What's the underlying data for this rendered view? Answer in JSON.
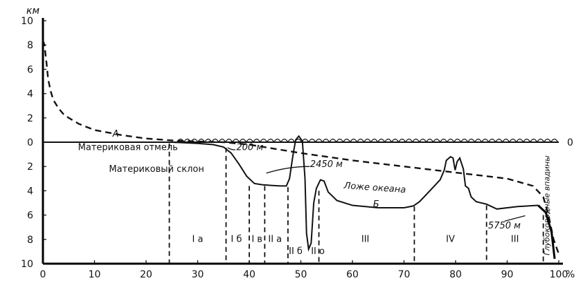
{
  "chart_data": {
    "type": "line",
    "title": "",
    "xlabel": "%",
    "ylabel": "км",
    "xlim": [
      0,
      100
    ],
    "ylim": [
      10,
      -10
    ],
    "x_ticks": [
      0,
      10,
      20,
      30,
      40,
      50,
      60,
      70,
      80,
      90,
      100
    ],
    "x_tick_labels": [
      "0",
      "10",
      "20",
      "30",
      "40",
      "50",
      "60",
      "70",
      "80",
      "90",
      "100"
    ],
    "y_tick_labels_upper": [
      "10",
      "8",
      "6",
      "4",
      "2",
      "0"
    ],
    "y_tick_labels_lower": [
      "2",
      "4",
      "6",
      "8",
      "10"
    ],
    "zero_label_right": "0",
    "series": [
      {
        "name": "А",
        "style": "dashed",
        "x": [
          0,
          0.3,
          0.7,
          1,
          1.5,
          2,
          3,
          4,
          5,
          7,
          10,
          15,
          20,
          25,
          30,
          35,
          40,
          50,
          60,
          70,
          80,
          90,
          95,
          97,
          98,
          99,
          100
        ],
        "y": [
          -8.4,
          -8.0,
          -6.5,
          -5.2,
          -4.2,
          -3.5,
          -2.8,
          -2.3,
          -2.0,
          -1.5,
          -1.0,
          -0.6,
          -0.3,
          -0.15,
          -0.05,
          0,
          0.2,
          0.9,
          1.5,
          2.0,
          2.5,
          3.0,
          3.6,
          4.5,
          6.0,
          8.0,
          9.2
        ]
      },
      {
        "name": "Б",
        "style": "solid",
        "x": [
          0,
          25,
          30,
          33,
          35,
          36.5,
          38,
          39.5,
          41,
          42.5,
          44,
          46,
          47.2,
          47.8,
          48.5,
          49,
          49.6,
          50.3,
          50.8,
          51.1,
          51.5,
          52,
          52.5,
          53,
          53.8,
          54.5,
          55.3,
          57,
          60,
          65,
          70,
          71.8,
          73,
          75,
          77,
          77.8,
          78.2,
          79,
          79.5,
          79.9,
          80.3,
          80.8,
          81.5,
          81.9,
          82.5,
          83,
          84,
          86,
          88,
          92,
          96
        ],
        "y": [
          0,
          0,
          0.1,
          0.2,
          0.4,
          0.9,
          1.8,
          2.8,
          3.4,
          3.5,
          3.55,
          3.6,
          3.6,
          3.0,
          1.0,
          -0.2,
          -0.5,
          -0.1,
          3.0,
          7.5,
          8.8,
          8.3,
          5.0,
          3.8,
          3.1,
          3.2,
          4.1,
          4.8,
          5.2,
          5.4,
          5.4,
          5.25,
          4.9,
          4.0,
          3.1,
          2.3,
          1.5,
          1.2,
          1.3,
          2.3,
          1.6,
          1.3,
          2.2,
          3.6,
          3.8,
          4.5,
          4.9,
          5.1,
          5.5,
          5.3,
          5.2
        ]
      }
    ],
    "zone_boundaries_x": [
      24.5,
      35.5,
      40,
      43,
      47.5,
      53.5,
      72,
      86,
      97
    ],
    "zone_labels": [
      {
        "text": "I а",
        "x": 30,
        "y": 8.2
      },
      {
        "text": "I б",
        "x": 37.5,
        "y": 8.2
      },
      {
        "text": "I в",
        "x": 41.5,
        "y": 8.2
      },
      {
        "text": "II а",
        "x": 45,
        "y": 8.2
      },
      {
        "text": "II б",
        "x": 49,
        "y": 9.2
      },
      {
        "text": "II о",
        "x": 53.3,
        "y": 9.2
      },
      {
        "text": "III",
        "x": 62.5,
        "y": 8.2
      },
      {
        "text": "IV",
        "x": 79,
        "y": 8.2
      },
      {
        "text": "III",
        "x": 91.5,
        "y": 8.2
      }
    ],
    "annotations": [
      {
        "id": "series_a",
        "text": "А",
        "x": 13.5,
        "y": -0.45
      },
      {
        "id": "series_b",
        "text": "Б",
        "x": 64,
        "y": 5.35
      },
      {
        "id": "shelf",
        "text": "Материковая отмель",
        "x": 6.8,
        "y": 0.65
      },
      {
        "id": "m200",
        "text": "200 м",
        "x": 37.5,
        "y": 0.65
      },
      {
        "id": "slope",
        "text": "Материковый склон",
        "x": 12.8,
        "y": 2.45
      },
      {
        "id": "m2450",
        "text": "2450 м",
        "x": 51.8,
        "y": 2.05
      },
      {
        "id": "ocean_floor",
        "text": "Ложе океана",
        "x": 58.3,
        "y": 3.8
      },
      {
        "id": "m5750",
        "text": "5750 м",
        "x": 86.3,
        "y": 7.1
      },
      {
        "id": "trenches",
        "text": "Глубоководные впадины",
        "x": 98.2,
        "y": 5.2
      }
    ]
  }
}
